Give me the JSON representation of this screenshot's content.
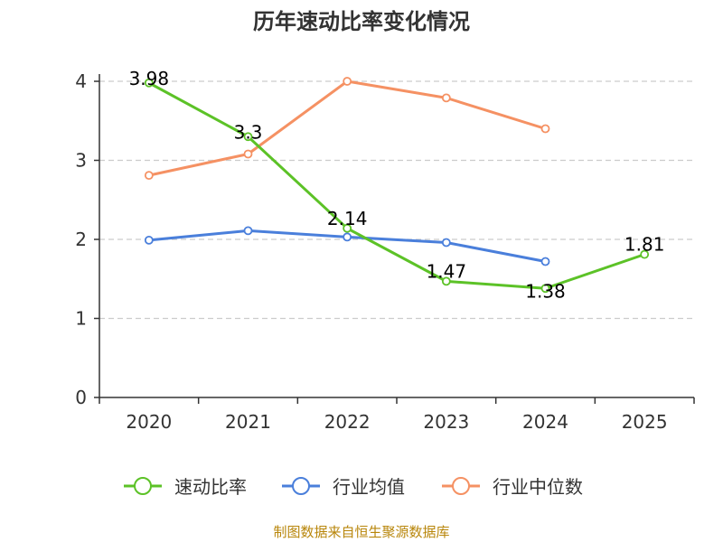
{
  "chart_data": {
    "type": "line",
    "title": "历年速动比率变化情况",
    "categories": [
      "2020",
      "2021",
      "2022",
      "2023",
      "2024",
      "2025"
    ],
    "ylim": [
      0,
      4
    ],
    "yticks": [
      "0",
      "1",
      "2",
      "3",
      "4"
    ],
    "grid": true,
    "legend_position": "bottom",
    "series": [
      {
        "name": "速动比率",
        "color": "#5cc227",
        "values": [
          3.98,
          3.3,
          2.14,
          1.47,
          1.38,
          1.81
        ],
        "labels": [
          "3.98",
          "3.3",
          "2.14",
          "1.47",
          "1.38",
          "1.81"
        ]
      },
      {
        "name": "行业均值",
        "color": "#4a7fdb",
        "values": [
          1.99,
          2.11,
          2.03,
          1.96,
          1.72,
          null
        ],
        "labels": []
      },
      {
        "name": "行业中位数",
        "color": "#f59163",
        "values": [
          2.81,
          3.08,
          4.0,
          3.79,
          3.4,
          null
        ],
        "labels": []
      }
    ]
  },
  "source": "制图数据来自恒生聚源数据库"
}
